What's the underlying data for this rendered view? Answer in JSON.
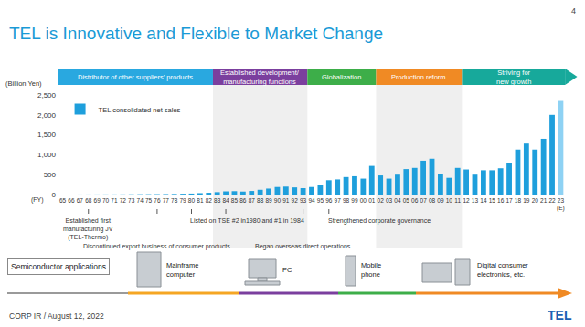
{
  "chart_data": {
    "type": "bar",
    "title": "TEL is Innovative and Flexible to Market Change",
    "y_label": "(Billion Yen)",
    "x_label": "(FY)",
    "categories": [
      "65",
      "66",
      "67",
      "68",
      "69",
      "70",
      "71",
      "72",
      "73",
      "74",
      "75",
      "76",
      "77",
      "78",
      "79",
      "80",
      "81",
      "82",
      "83",
      "84",
      "85",
      "86",
      "87",
      "88",
      "89",
      "90",
      "91",
      "92",
      "93",
      "94",
      "95",
      "96",
      "97",
      "98",
      "99",
      "00",
      "01",
      "02",
      "03",
      "04",
      "05",
      "06",
      "07",
      "08",
      "09",
      "10",
      "11",
      "12",
      "13",
      "14",
      "15",
      "16",
      "17",
      "18",
      "19",
      "20",
      "21",
      "22",
      "23\n(E)"
    ],
    "series": [
      {
        "name": "TEL consolidated net sales",
        "color": "#1E9FDC",
        "colors": [
          "#1E9FDC",
          "#1E9FDC",
          "#1E9FDC",
          "#1E9FDC",
          "#1E9FDC",
          "#1E9FDC",
          "#1E9FDC",
          "#1E9FDC",
          "#1E9FDC",
          "#1E9FDC",
          "#1E9FDC",
          "#1E9FDC",
          "#1E9FDC",
          "#1E9FDC",
          "#1E9FDC",
          "#1E9FDC",
          "#1E9FDC",
          "#1E9FDC",
          "#1E9FDC",
          "#1E9FDC",
          "#1E9FDC",
          "#1E9FDC",
          "#1E9FDC",
          "#1E9FDC",
          "#1E9FDC",
          "#1E9FDC",
          "#1E9FDC",
          "#1E9FDC",
          "#1E9FDC",
          "#1E9FDC",
          "#1E9FDC",
          "#1E9FDC",
          "#1E9FDC",
          "#1E9FDC",
          "#1E9FDC",
          "#1E9FDC",
          "#1E9FDC",
          "#1E9FDC",
          "#1E9FDC",
          "#1E9FDC",
          "#1E9FDC",
          "#1E9FDC",
          "#1E9FDC",
          "#1E9FDC",
          "#1E9FDC",
          "#1E9FDC",
          "#1E9FDC",
          "#1E9FDC",
          "#1E9FDC",
          "#1E9FDC",
          "#1E9FDC",
          "#1E9FDC",
          "#1E9FDC",
          "#1E9FDC",
          "#1E9FDC",
          "#1E9FDC",
          "#1E9FDC",
          "#1E9FDC",
          "#8ED2F4"
        ],
        "values": [
          0.5,
          0.8,
          1,
          1.5,
          2,
          3,
          3,
          4,
          6,
          8,
          9,
          10,
          12,
          15,
          20,
          25,
          35,
          45,
          60,
          80,
          85,
          75,
          90,
          120,
          150,
          190,
          200,
          180,
          160,
          190,
          250,
          360,
          380,
          440,
          460,
          400,
          720,
          480,
          400,
          500,
          640,
          670,
          850,
          900,
          510,
          420,
          670,
          630,
          500,
          610,
          610,
          660,
          800,
          1130,
          1280,
          1130,
          1400,
          2000,
          2350
        ]
      }
    ],
    "ylim": [
      0,
      2500
    ],
    "yticks": [
      0,
      500,
      {
        "value": 1000,
        "label": "1,000"
      },
      {
        "value": 1500,
        "label": "1,500"
      },
      {
        "value": 2000,
        "label": "2,000"
      },
      {
        "value": 2500,
        "label": "2,500"
      }
    ],
    "grid": false,
    "legend": "upper left",
    "phases": [
      {
        "label": "Distributor of other suppliers' products",
        "from": "65",
        "to": "82",
        "color": "#29A8E0"
      },
      {
        "label": "Established development/\nmanufacturing functions",
        "from": "83",
        "to": "93",
        "color": "#7B3F9E"
      },
      {
        "label": "Globalization",
        "from": "94",
        "to": "01",
        "color": "#3DAE49"
      },
      {
        "label": "Production reform",
        "from": "02",
        "to": "11",
        "color": "#F08A24"
      },
      {
        "label": "Striving for\nnew growth",
        "from": "12",
        "to": "23\n(E)",
        "color": "#17A99B"
      }
    ],
    "events": [
      {
        "text": "Established first\nmanufacturing JV\n(TEL-Thermo)",
        "at": [
          "68"
        ]
      },
      {
        "text": "Discontinued export business of consumer products",
        "at": [
          "76"
        ]
      },
      {
        "text": "Listed on TSE #2 in1980 and #1 in 1984",
        "at": [
          "80",
          "84"
        ]
      },
      {
        "text": "Began overseas direct operations",
        "at": [
          "93"
        ]
      },
      {
        "text": "Strengthened corporate governance",
        "at": [
          "96"
        ]
      }
    ],
    "applications": {
      "title": "Semiconductor applications",
      "items": [
        "Mainframe\ncomputer",
        "PC",
        "Mobile\nphone",
        "Digital consumer\nelectronics, etc."
      ]
    },
    "footer": "CORP IR / August 12, 2022",
    "page": "4",
    "logo": "TEL"
  }
}
